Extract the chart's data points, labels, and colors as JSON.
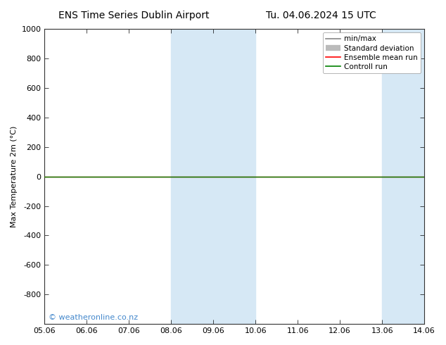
{
  "title_left": "ENS Time Series Dublin Airport",
  "title_right": "Tu. 04.06.2024 15 UTC",
  "ylabel": "Max Temperature 2m (°C)",
  "xlabel_ticks": [
    "05.06",
    "06.06",
    "07.06",
    "08.06",
    "09.06",
    "10.06",
    "11.06",
    "12.06",
    "13.06",
    "14.06"
  ],
  "ylim_top": -1000,
  "ylim_bottom": 1000,
  "yticks": [
    -800,
    -600,
    -400,
    -200,
    0,
    200,
    400,
    600,
    800,
    1000
  ],
  "yticklabels": [
    "-800",
    "-600",
    "-400",
    "-200",
    "0",
    "200",
    "400",
    "600",
    "800",
    "1000"
  ],
  "bg_color": "#ffffff",
  "plot_bg_color": "#ffffff",
  "shaded_regions": [
    {
      "xstart": 3,
      "xend": 4,
      "color": "#d6e8f5"
    },
    {
      "xstart": 4,
      "xend": 5,
      "color": "#d6e8f5"
    },
    {
      "xstart": 8,
      "xend": 9,
      "color": "#d6e8f5"
    },
    {
      "xstart": 9,
      "xend": 10,
      "color": "#d6e8f5"
    }
  ],
  "hline_y": 0,
  "hline_color_ensemble": "#ff0000",
  "hline_color_control": "#008000",
  "watermark": "© weatheronline.co.nz",
  "watermark_color": "#4488cc",
  "legend_items": [
    {
      "label": "min/max",
      "color": "#888888",
      "lw": 1.2
    },
    {
      "label": "Standard deviation",
      "color": "#bbbbbb",
      "lw": 6
    },
    {
      "label": "Ensemble mean run",
      "color": "#ff0000",
      "lw": 1.2
    },
    {
      "label": "Controll run",
      "color": "#008000",
      "lw": 1.2
    }
  ],
  "num_xticks": 10,
  "x_range": [
    0,
    9
  ]
}
